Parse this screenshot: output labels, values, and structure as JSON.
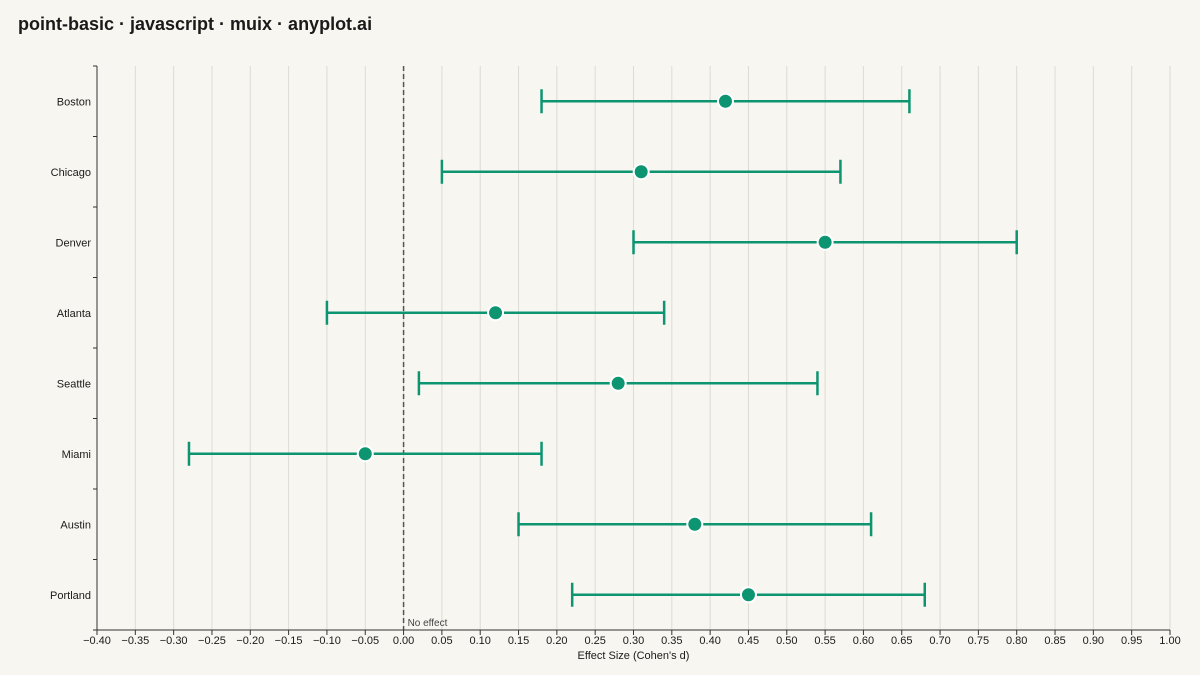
{
  "page": {
    "title": "point-basic · javascript · muix · anyplot.ai"
  },
  "chart_data": {
    "type": "scatter",
    "orientation": "horizontal-interval",
    "xlabel": "Effect Size (Cohen's d)",
    "ylabel": "",
    "xlim": [
      -0.4,
      1.0
    ],
    "x_tick_step": 0.05,
    "grid": "vertical",
    "reference_line": {
      "x": 0.0,
      "label": "No effect",
      "style": "dashed"
    },
    "colors": {
      "series": "#0d9470",
      "background": "#f8f6f0",
      "grid": "#dddbd3",
      "reference": "#555555"
    },
    "categories": [
      "Boston",
      "Chicago",
      "Denver",
      "Atlanta",
      "Seattle",
      "Miami",
      "Austin",
      "Portland"
    ],
    "estimates": [
      0.42,
      0.31,
      0.55,
      0.12,
      0.28,
      -0.05,
      0.38,
      0.45
    ],
    "lower": [
      0.18,
      0.05,
      0.3,
      -0.1,
      0.02,
      -0.28,
      0.15,
      0.22
    ],
    "upper": [
      0.66,
      0.57,
      0.8,
      0.34,
      0.54,
      0.18,
      0.61,
      0.68
    ]
  }
}
